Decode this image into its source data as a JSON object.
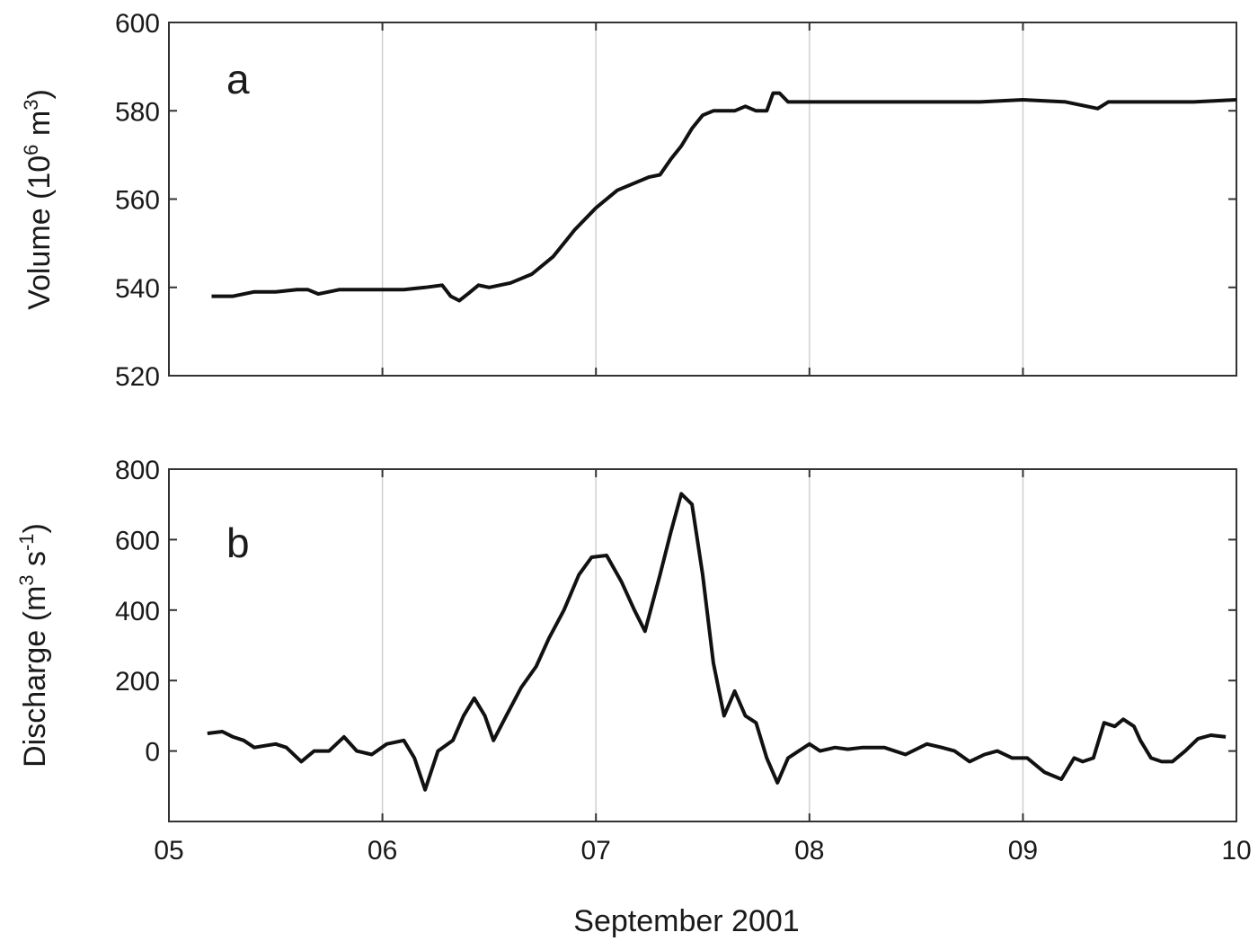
{
  "xlabel": "September 2001",
  "chart_data": [
    {
      "type": "line",
      "panel_label": "a",
      "ylabel_parts": [
        "Volume (10",
        "6",
        " m",
        "3",
        ")"
      ],
      "ylim": [
        520,
        600
      ],
      "yticks": [
        520,
        540,
        560,
        580,
        600
      ],
      "xlim": [
        5,
        10
      ],
      "xticks": [
        5,
        6,
        7,
        8,
        9,
        10
      ],
      "xtick_labels": [
        "05",
        "06",
        "07",
        "08",
        "09",
        "10"
      ],
      "grid": "vertical",
      "series": [
        {
          "x": [
            5.2,
            5.3,
            5.4,
            5.5,
            5.6,
            5.65,
            5.7,
            5.8,
            5.9,
            6.0,
            6.1,
            6.2,
            6.28,
            6.32,
            6.36,
            6.4,
            6.45,
            6.5,
            6.6,
            6.7,
            6.8,
            6.9,
            7.0,
            7.1,
            7.2,
            7.25,
            7.3,
            7.35,
            7.4,
            7.45,
            7.5,
            7.55,
            7.6,
            7.65,
            7.7,
            7.75,
            7.8,
            7.83,
            7.86,
            7.9,
            8.0,
            8.2,
            8.4,
            8.6,
            8.8,
            9.0,
            9.2,
            9.3,
            9.35,
            9.4,
            9.6,
            9.8,
            10.0
          ],
          "y": [
            538,
            538,
            539,
            539,
            539.5,
            539.5,
            538.5,
            539.5,
            539.5,
            539.5,
            539.5,
            540,
            540.5,
            538,
            537,
            538.5,
            540.5,
            540,
            541,
            543,
            547,
            553,
            558,
            562,
            564,
            565,
            565.5,
            569,
            572,
            576,
            579,
            580,
            580,
            580,
            581,
            580,
            580,
            584,
            584,
            582,
            582,
            582,
            582,
            582,
            582,
            582.5,
            582,
            581,
            580.5,
            582,
            582,
            582,
            582.5
          ]
        }
      ]
    },
    {
      "type": "line",
      "panel_label": "b",
      "ylabel_parts": [
        "Discharge (m",
        "3",
        " s",
        "-1",
        ")"
      ],
      "ylim": [
        -200,
        800
      ],
      "yticks": [
        0,
        200,
        400,
        600,
        800
      ],
      "xlim": [
        5,
        10
      ],
      "xticks": [
        5,
        6,
        7,
        8,
        9,
        10
      ],
      "xtick_labels": [
        "05",
        "06",
        "07",
        "08",
        "09",
        "10"
      ],
      "grid": "vertical",
      "series": [
        {
          "x": [
            5.18,
            5.25,
            5.3,
            5.35,
            5.4,
            5.45,
            5.5,
            5.55,
            5.62,
            5.68,
            5.75,
            5.82,
            5.88,
            5.95,
            6.02,
            6.1,
            6.15,
            6.2,
            6.26,
            6.33,
            6.38,
            6.43,
            6.48,
            6.52,
            6.58,
            6.65,
            6.72,
            6.78,
            6.85,
            6.92,
            6.98,
            7.05,
            7.12,
            7.18,
            7.23,
            7.3,
            7.35,
            7.4,
            7.45,
            7.5,
            7.55,
            7.6,
            7.65,
            7.7,
            7.75,
            7.8,
            7.85,
            7.9,
            7.95,
            8.0,
            8.05,
            8.12,
            8.18,
            8.25,
            8.35,
            8.45,
            8.55,
            8.62,
            8.68,
            8.75,
            8.82,
            8.88,
            8.95,
            9.02,
            9.1,
            9.18,
            9.24,
            9.28,
            9.33,
            9.38,
            9.43,
            9.47,
            9.52,
            9.55,
            9.6,
            9.65,
            9.7,
            9.76,
            9.82,
            9.88,
            9.95
          ],
          "y": [
            50,
            55,
            40,
            30,
            10,
            15,
            20,
            10,
            -30,
            0,
            0,
            40,
            0,
            -10,
            20,
            30,
            -20,
            -110,
            0,
            30,
            100,
            150,
            100,
            30,
            100,
            180,
            240,
            320,
            400,
            500,
            550,
            555,
            480,
            400,
            340,
            500,
            620,
            730,
            700,
            500,
            250,
            100,
            170,
            100,
            80,
            -20,
            -90,
            -20,
            0,
            20,
            0,
            10,
            5,
            10,
            10,
            -10,
            20,
            10,
            0,
            -30,
            -10,
            0,
            -20,
            -20,
            -60,
            -80,
            -20,
            -30,
            -20,
            80,
            70,
            90,
            70,
            30,
            -20,
            -30,
            -30,
            0,
            35,
            45,
            40
          ]
        }
      ]
    }
  ]
}
